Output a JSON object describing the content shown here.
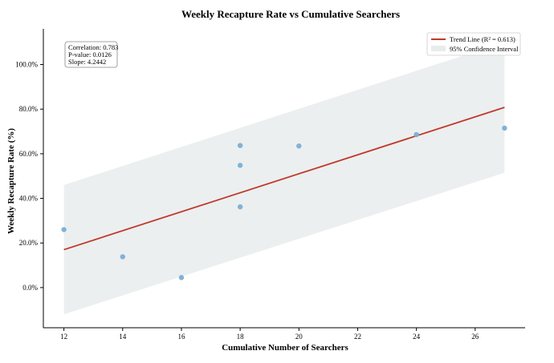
{
  "chart_data": {
    "type": "scatter",
    "title": "Weekly Recapture Rate vs Cumulative Searchers",
    "xlabel": "Cumulative Number of Searchers",
    "ylabel": "Weekly Recapture Rate (%)",
    "xlim": [
      11.3,
      27.7
    ],
    "ylim": [
      -18,
      116
    ],
    "x_ticks": [
      12,
      14,
      16,
      18,
      20,
      22,
      24,
      26
    ],
    "x_tick_labels": [
      "12",
      "14",
      "16",
      "18",
      "20",
      "22",
      "24",
      "26"
    ],
    "y_ticks": [
      0,
      20,
      40,
      60,
      80,
      100
    ],
    "y_tick_labels": [
      "0.0%",
      "20.0%",
      "40.0%",
      "60.0%",
      "80.0%",
      "100.0%"
    ],
    "grid": false,
    "legend_position": "top-right",
    "colors": {
      "points": "#7aaed6",
      "trend_line": "#c0392b",
      "confidence_band": "#e9ecec"
    },
    "series": [
      {
        "name": "",
        "type": "scatter",
        "points": [
          {
            "x": 12,
            "y": 26.0
          },
          {
            "x": 14,
            "y": 13.8
          },
          {
            "x": 16,
            "y": 4.5
          },
          {
            "x": 18,
            "y": 36.2
          },
          {
            "x": 18,
            "y": 54.8
          },
          {
            "x": 18,
            "y": 63.7
          },
          {
            "x": 20,
            "y": 63.5
          },
          {
            "x": 24,
            "y": 68.6
          },
          {
            "x": 27,
            "y": 71.5
          }
        ]
      },
      {
        "name": "Trend Line (R² = 0.613)",
        "type": "line",
        "points": [
          {
            "x": 12,
            "y": 17.0
          },
          {
            "x": 27,
            "y": 80.8
          }
        ]
      },
      {
        "name": "95% Confidence Interval",
        "type": "band",
        "x": [
          12,
          27
        ],
        "lower": [
          -12.0,
          51.5
        ],
        "upper": [
          46.0,
          110.0
        ]
      }
    ],
    "annotation": {
      "lines": [
        "Correlation: 0.783",
        "P-value: 0.0126",
        "Slope: 4.2442"
      ]
    }
  }
}
